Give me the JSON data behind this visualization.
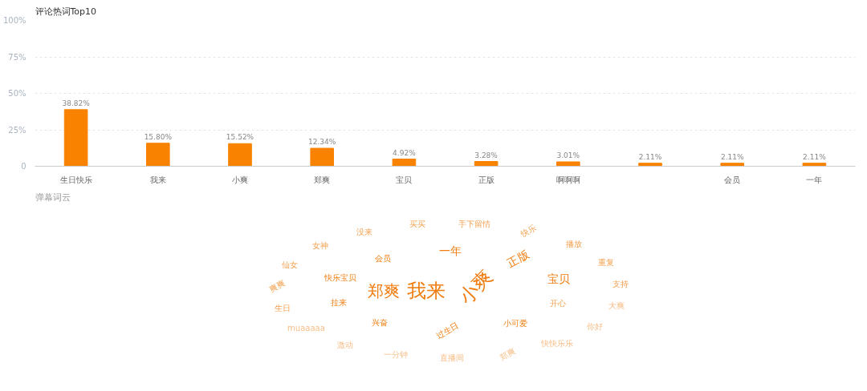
{
  "chart_data": [
    {
      "type": "bar",
      "title": "评论热词Top10",
      "categories": [
        "生日快乐",
        "我来",
        "小爽",
        "郑爽",
        "宝贝",
        "正版",
        "啊啊啊",
        null,
        "会员",
        "一年"
      ],
      "values": [
        38.82,
        15.8,
        15.52,
        12.34,
        4.92,
        3.28,
        3.01,
        2.11,
        2.11,
        2.11
      ],
      "value_labels": [
        "38.82%",
        "15.80%",
        "15.52%",
        "12.34%",
        "4.92%",
        "3.28%",
        "3.01%",
        "2.11%",
        "2.11%",
        "2.11%"
      ],
      "color": "#f98200",
      "ylim": [
        0,
        100
      ],
      "yticks": [
        0,
        {
          "value": 25,
          "label": "25%"
        },
        {
          "value": 50,
          "label": "50%"
        },
        {
          "value": 75,
          "label": "75%"
        },
        {
          "value": 100,
          "label": "100%"
        }
      ],
      "grid": "y"
    },
    {
      "type": "other",
      "title": "弹幕词云",
      "annotations": [
        "我来",
        "小爽",
        "郑爽",
        "宝贝",
        "正版",
        "一年",
        "会员",
        "快乐宝贝",
        "拉来",
        "兴奋",
        "过生日",
        "小可爱",
        "开心",
        "支持",
        "重复",
        "播放",
        "快乐",
        "手下留情",
        "买买",
        "没来",
        "女神",
        "仙女",
        "爽爽",
        "生日",
        "muaaaaa",
        "激动",
        "一分钟",
        "直播间",
        "郑爽",
        "快快乐乐",
        "你好",
        "大爽"
      ]
    }
  ]
}
